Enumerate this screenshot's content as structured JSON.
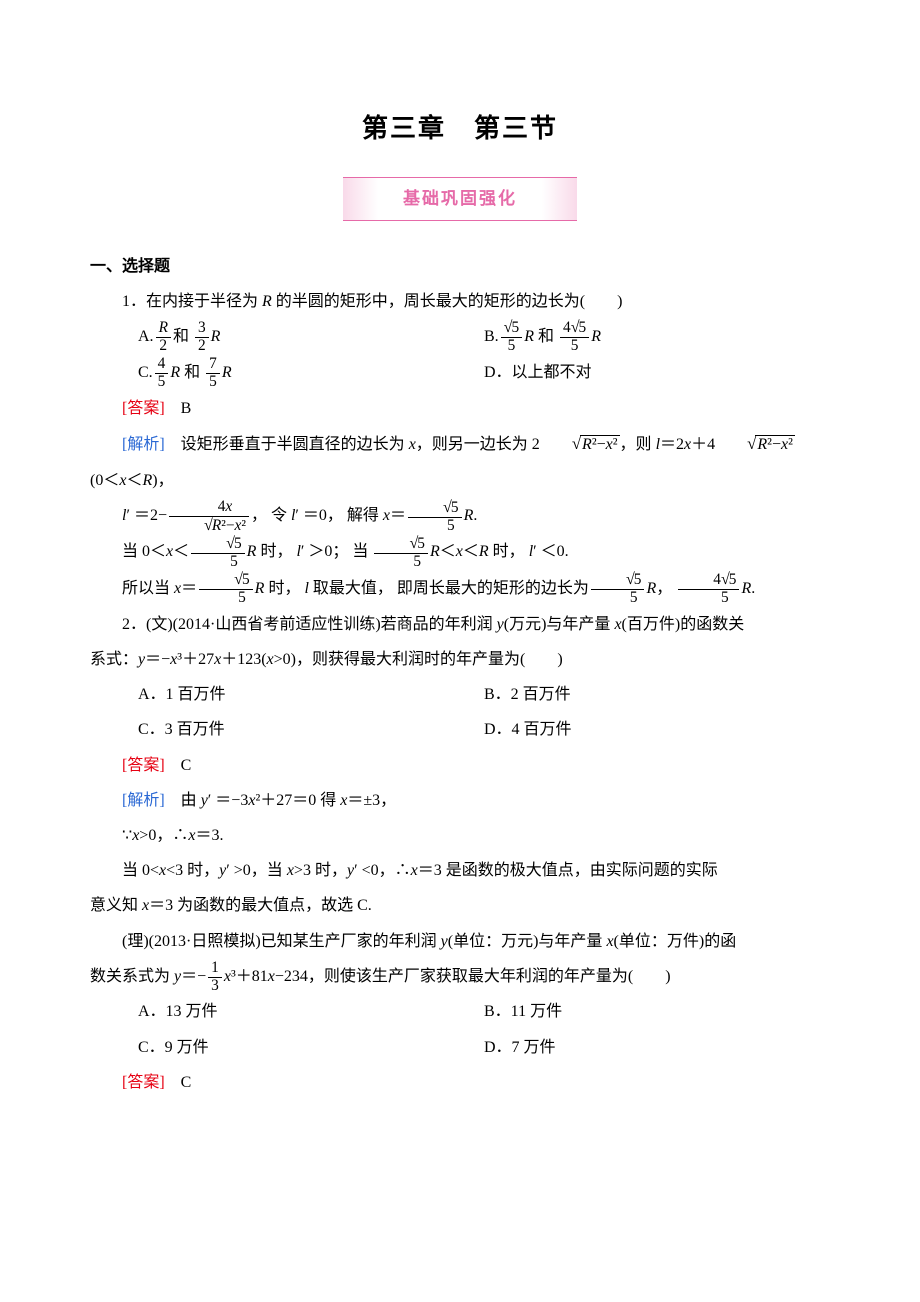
{
  "chapter_title": "第三章　第三节",
  "subtitle": "基础巩固强化",
  "section1": "一、选择题",
  "q1": {
    "stem": "1．在内接于半径为 R 的半圆的矩形中，周长最大的矩形的边长为(　　)",
    "optA_pre": "A.",
    "optA_fr1_num": "R",
    "optA_fr1_den": "2",
    "optA_mid": "和 ",
    "optA_fr2_num": "3",
    "optA_fr2_den": "2",
    "optA_post": "R",
    "optB_pre": "B.",
    "optB_fr1_num": "√5",
    "optB_fr1_num_body": "5",
    "optB_fr1_den": "5",
    "optB_mid1": "R 和 ",
    "optB_fr2_num": "4√5",
    "optB_fr2_num_pre": "4",
    "optB_fr2_num_body": "5",
    "optB_fr2_den": "5",
    "optB_post": "R",
    "optC_pre": "C.",
    "optC_fr1_num": "4",
    "optC_fr1_den": "5",
    "optC_mid": "R 和 ",
    "optC_fr2_num": "7",
    "optC_fr2_den": "5",
    "optC_post": "R",
    "optD": "D．以上都不对",
    "ans_label": "[答案]",
    "ans": "　B",
    "sol_label": "[解析]",
    "sol1a": "　设矩形垂直于半圆直径的边长为 x，则另一边长为 2",
    "sol1_rad1": "R²−x²",
    "sol1b": "，则 l＝2x＋4",
    "sol1_rad2": "R²−x²",
    "sol2": "(0＜x＜R)，",
    "sol3a": "l′ ＝2−",
    "sol3_frac_num": "4x",
    "sol3_frac_den_body": "R²−x²",
    "sol3b": "， 令 l′ ＝0， 解得 x＝",
    "sol3_frac2_num_body": "5",
    "sol3_frac2_den": "5",
    "sol3c": "R.",
    "sol4a": "当 0＜x＜",
    "sol4_fr_num_body": "5",
    "sol4_fr_den": "5",
    "sol4b": "R 时， l′ ＞0； 当 ",
    "sol4_fr2_num_body": "5",
    "sol4_fr2_den": "5",
    "sol4c": "R＜x＜R 时， l′ ＜0.",
    "sol5a": "所以当 x＝",
    "sol5_fr_num_body": "5",
    "sol5_fr_den": "5",
    "sol5b": "R 时， l 取最大值， 即周长最大的矩形的边长为",
    "sol5_fr2_num_body": "5",
    "sol5_fr2_den": "5",
    "sol5c": "R， ",
    "sol5_fr3_pre": "4",
    "sol5_fr3_num_body": "5",
    "sol5_fr3_den": "5",
    "sol5d": "R."
  },
  "q2wen": {
    "stem": "2．(文)(2014·山西省考前适应性训练)若商品的年利润 y(万元)与年产量 x(百万件)的函数关系式：y＝−x³＋27x＋123(x>0)，则获得最大利润时的年产量为(　　)",
    "optA": "A．1 百万件",
    "optB": "B．2 百万件",
    "optC": "C．3 百万件",
    "optD": "D．4 百万件",
    "ans_label": "[答案]",
    "ans": "　C",
    "sol_label": "[解析]",
    "sol1": "　由 y′ ＝−3x²＋27＝0 得 x＝±3，",
    "sol2": "∵x>0，∴x＝3.",
    "sol3": "当 0<x<3 时，y′ >0，当 x>3 时，y′ <0，∴x＝3 是函数的极大值点，由实际问题的实际意义知 x＝3 为函数的最大值点，故选 C."
  },
  "q2li": {
    "stem_a": "(理)(2013·日照模拟)已知某生产厂家的年利润 y(单位：万元)与年产量 x(单位：万件)的函数关系式为 y＝−",
    "fr_num": "1",
    "fr_den": "3",
    "stem_b": "x³＋81x−234，则使该生产厂家获取最大年利润的年产量为(　　)",
    "optA": "A．13 万件",
    "optB": "B．11 万件",
    "optC": "C．9 万件",
    "optD": "D．7 万件",
    "ans_label": "[答案]",
    "ans": "　C"
  }
}
